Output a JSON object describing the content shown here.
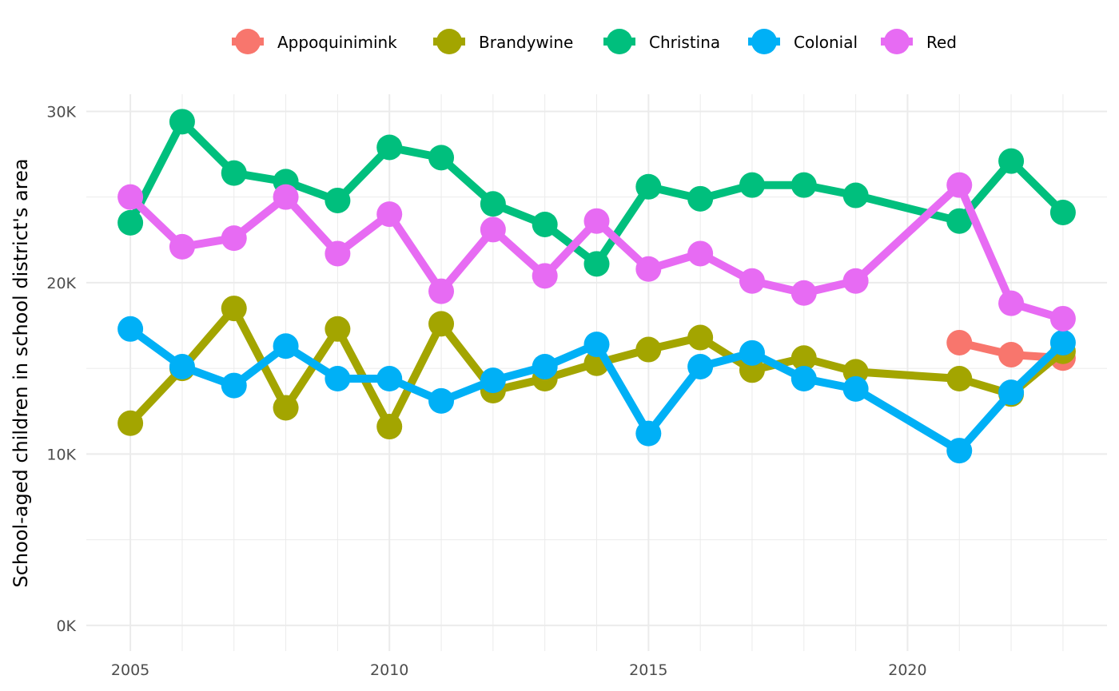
{
  "chart_data": {
    "type": "line",
    "title": "",
    "xlabel": "",
    "ylabel": "School-aged children in school district's area",
    "x_ticks": [
      2005,
      2010,
      2015,
      2020
    ],
    "x_tick_labels": [
      "2005",
      "2010",
      "2015",
      "2020"
    ],
    "y_ticks": [
      0,
      10000,
      20000,
      30000
    ],
    "y_tick_labels": [
      "0K",
      "10K",
      "20K",
      "30K"
    ],
    "xlim": [
      2004.15,
      2023.85
    ],
    "ylim": [
      -1500,
      31000
    ],
    "grid": true,
    "legend_position": "top",
    "series": [
      {
        "name": "Appoquinimink",
        "color": "#F8766D",
        "x": [
          2021,
          2022,
          2023
        ],
        "values": [
          16500,
          15800,
          15600
        ]
      },
      {
        "name": "Brandywine",
        "color": "#A3A500",
        "x": [
          2005,
          2006,
          2007,
          2008,
          2009,
          2010,
          2011,
          2012,
          2013,
          2014,
          2015,
          2016,
          2017,
          2018,
          2019,
          2021,
          2022,
          2023
        ],
        "values": [
          11800,
          15000,
          18500,
          12700,
          17300,
          11600,
          17600,
          13700,
          14400,
          15300,
          16100,
          16800,
          14900,
          15600,
          14800,
          14400,
          13500,
          16000
        ]
      },
      {
        "name": "Christina",
        "color": "#00BF7D",
        "x": [
          2005,
          2006,
          2007,
          2008,
          2009,
          2010,
          2011,
          2012,
          2013,
          2014,
          2015,
          2016,
          2017,
          2018,
          2019,
          2021,
          2022,
          2023
        ],
        "values": [
          23500,
          29400,
          26400,
          25900,
          24800,
          27900,
          27300,
          24600,
          23400,
          21100,
          25600,
          24900,
          25700,
          25700,
          25100,
          23600,
          27100,
          24100
        ]
      },
      {
        "name": "Colonial",
        "color": "#00B0F6",
        "x": [
          2005,
          2006,
          2007,
          2008,
          2009,
          2010,
          2011,
          2012,
          2013,
          2014,
          2015,
          2016,
          2017,
          2018,
          2019,
          2021,
          2022,
          2023
        ],
        "values": [
          17300,
          15100,
          14000,
          16300,
          14400,
          14400,
          13100,
          14300,
          15100,
          16400,
          11200,
          15100,
          15900,
          14400,
          13800,
          10200,
          13600,
          16500
        ]
      },
      {
        "name": "Red",
        "color": "#E76BF3",
        "x": [
          2005,
          2006,
          2007,
          2008,
          2009,
          2010,
          2011,
          2012,
          2013,
          2014,
          2015,
          2016,
          2017,
          2018,
          2019,
          2021,
          2022,
          2023
        ],
        "values": [
          25000,
          22100,
          22600,
          25000,
          21700,
          24000,
          19500,
          23100,
          20400,
          23600,
          20800,
          21700,
          20100,
          19400,
          20100,
          25700,
          18800,
          17900
        ]
      }
    ]
  }
}
